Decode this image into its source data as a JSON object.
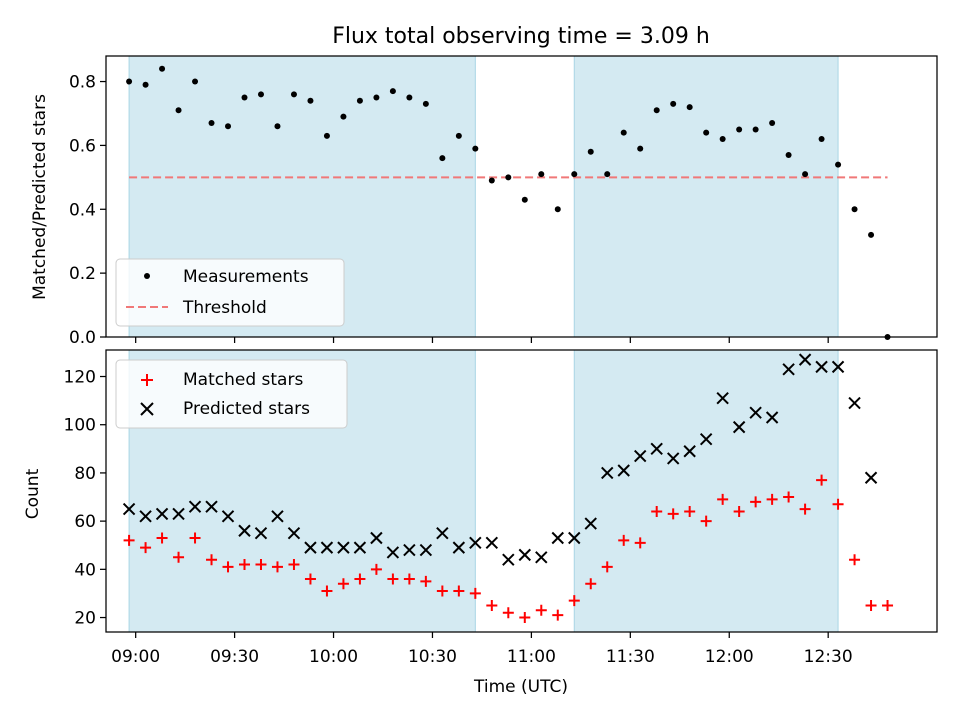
{
  "colors": {
    "band": "#a9d6e5",
    "measure": "#000000",
    "threshold": "#f07878",
    "matched": "#ff0000",
    "predicted": "#000000"
  },
  "chart_data": [
    {
      "type": "scatter",
      "title": "Flux total observing time = 3.09 h",
      "xlabel": "",
      "ylabel": "Matched/Predicted stars",
      "ylim": [
        0,
        0.88
      ],
      "yticks": [
        "0.0",
        "0.2",
        "0.4",
        "0.6",
        "0.8"
      ],
      "ytick_values": [
        0,
        0.2,
        0.4,
        0.6,
        0.8
      ],
      "xlim": [
        "08:51",
        "13:03"
      ],
      "observing_windows": [
        [
          "08:58",
          "10:43"
        ],
        [
          "11:13",
          "12:33"
        ]
      ],
      "legend_position": "lower-left",
      "legend": {
        "measurements": "Measurements",
        "threshold": "Threshold"
      },
      "threshold": {
        "name": "Threshold",
        "x": [
          "08:58",
          "12:48"
        ],
        "y": 0.5
      },
      "series": [
        {
          "name": "Measurements",
          "x": [
            "08:58",
            "09:03",
            "09:08",
            "09:13",
            "09:18",
            "09:23",
            "09:28",
            "09:33",
            "09:38",
            "09:43",
            "09:48",
            "09:53",
            "09:58",
            "10:03",
            "10:08",
            "10:13",
            "10:18",
            "10:23",
            "10:28",
            "10:33",
            "10:38",
            "10:43",
            "10:48",
            "10:53",
            "10:58",
            "11:03",
            "11:08",
            "11:13",
            "11:18",
            "11:23",
            "11:28",
            "11:33",
            "11:38",
            "11:43",
            "11:48",
            "11:53",
            "11:58",
            "12:03",
            "12:08",
            "12:13",
            "12:18",
            "12:23",
            "12:28",
            "12:33",
            "12:38",
            "12:43",
            "12:48"
          ],
          "y": [
            0.8,
            0.79,
            0.84,
            0.71,
            0.8,
            0.67,
            0.66,
            0.75,
            0.76,
            0.66,
            0.76,
            0.74,
            0.63,
            0.69,
            0.74,
            0.75,
            0.77,
            0.75,
            0.73,
            0.56,
            0.63,
            0.59,
            0.49,
            0.5,
            0.43,
            0.51,
            0.4,
            0.51,
            0.58,
            0.51,
            0.64,
            0.59,
            0.71,
            0.73,
            0.72,
            0.64,
            0.62,
            0.65,
            0.65,
            0.67,
            0.57,
            0.51,
            0.62,
            0.54,
            0.4,
            0.32,
            0.0
          ]
        }
      ]
    },
    {
      "type": "scatter",
      "title": "",
      "xlabel": "Time (UTC)",
      "ylabel": "Count",
      "ylim": [
        14,
        131
      ],
      "yticks": [
        "20",
        "40",
        "60",
        "80",
        "100",
        "120"
      ],
      "ytick_values": [
        20,
        40,
        60,
        80,
        100,
        120
      ],
      "xticks": [
        "09:00",
        "09:30",
        "10:00",
        "10:30",
        "11:00",
        "11:30",
        "12:00",
        "12:30"
      ],
      "xlim": [
        "08:51",
        "13:03"
      ],
      "observing_windows": [
        [
          "08:58",
          "10:43"
        ],
        [
          "11:13",
          "12:33"
        ]
      ],
      "legend_position": "upper-left",
      "legend": {
        "matched": "Matched stars",
        "predicted": "Predicted stars"
      },
      "x": [
        "08:58",
        "09:03",
        "09:08",
        "09:13",
        "09:18",
        "09:23",
        "09:28",
        "09:33",
        "09:38",
        "09:43",
        "09:48",
        "09:53",
        "09:58",
        "10:03",
        "10:08",
        "10:13",
        "10:18",
        "10:23",
        "10:28",
        "10:33",
        "10:38",
        "10:43",
        "10:48",
        "10:53",
        "10:58",
        "11:03",
        "11:08",
        "11:13",
        "11:18",
        "11:23",
        "11:28",
        "11:33",
        "11:38",
        "11:43",
        "11:48",
        "11:53",
        "11:58",
        "12:03",
        "12:08",
        "12:13",
        "12:18",
        "12:23",
        "12:28",
        "12:33",
        "12:38",
        "12:43",
        "12:48"
      ],
      "series": [
        {
          "name": "Matched stars",
          "marker": "plus",
          "values": [
            52,
            49,
            53,
            45,
            53,
            44,
            41,
            42,
            42,
            41,
            42,
            36,
            31,
            34,
            36,
            40,
            36,
            36,
            35,
            31,
            31,
            30,
            25,
            22,
            20,
            23,
            21,
            27,
            34,
            41,
            52,
            51,
            64,
            63,
            64,
            60,
            69,
            64,
            68,
            69,
            70,
            65,
            77,
            67,
            44,
            25,
            25
          ]
        },
        {
          "name": "Predicted stars",
          "marker": "x",
          "values": [
            65,
            62,
            63,
            63,
            66,
            66,
            62,
            56,
            55,
            62,
            55,
            49,
            49,
            49,
            49,
            53,
            47,
            48,
            48,
            55,
            49,
            51,
            51,
            44,
            46,
            45,
            53,
            53,
            59,
            80,
            81,
            87,
            90,
            86,
            89,
            94,
            111,
            99,
            105,
            103,
            123,
            127,
            124,
            124,
            109,
            78,
            null
          ]
        }
      ]
    }
  ]
}
